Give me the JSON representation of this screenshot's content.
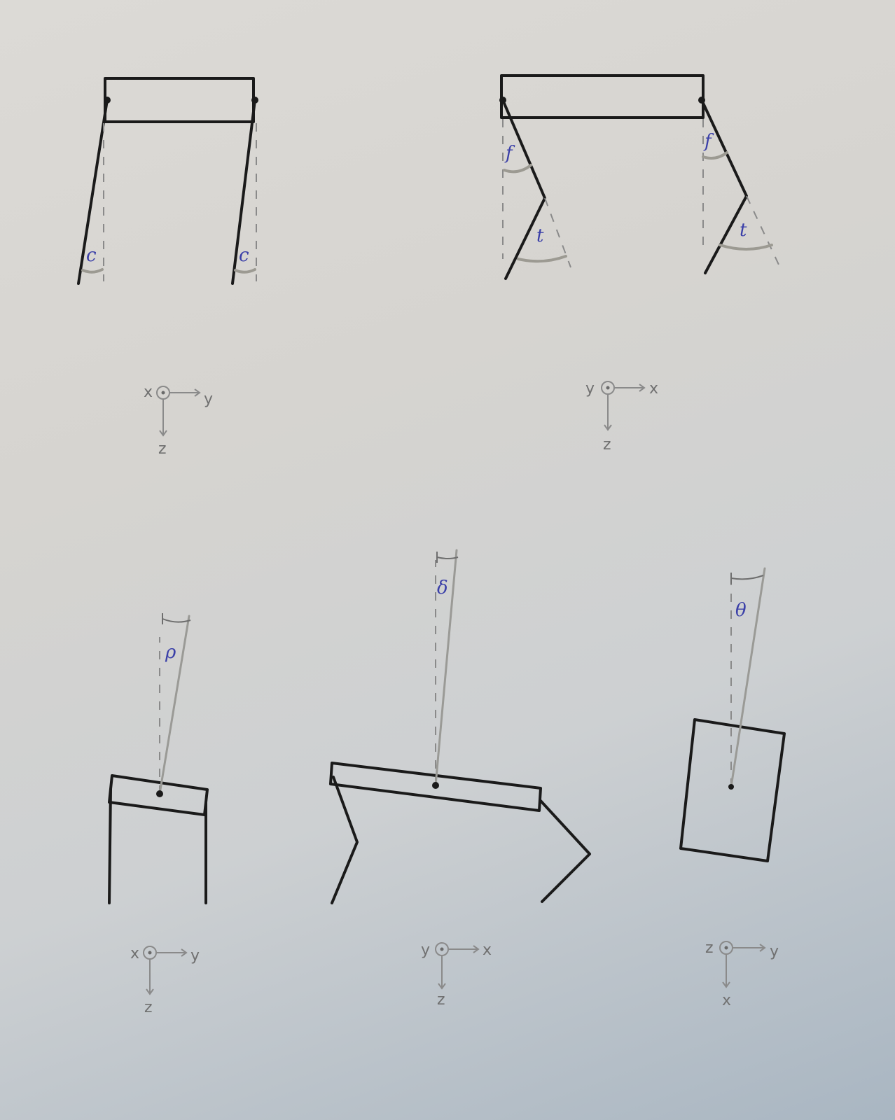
{
  "angles": {
    "c": "c",
    "f": "f",
    "t": "t",
    "rho": "ρ",
    "delta": "δ",
    "theta": "θ"
  },
  "axes": {
    "front_top": {
      "x": "x",
      "y": "y",
      "z": "z"
    },
    "side_top": {
      "x": "x",
      "y": "y",
      "z": "z"
    },
    "front_bottom": {
      "x": "x",
      "y": "y",
      "z": "z"
    },
    "side_bottom": {
      "x": "x",
      "y": "y",
      "z": "z"
    },
    "top_bottom": {
      "x": "x",
      "y": "y",
      "z": "z"
    }
  }
}
